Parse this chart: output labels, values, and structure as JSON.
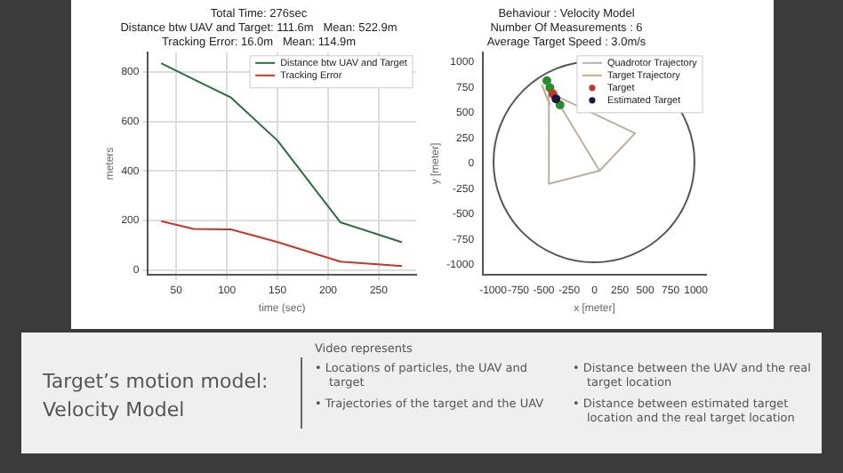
{
  "chart_data": [
    {
      "type": "line",
      "title": "Total Time: 276sec\nDistance btw UAV and Target: 111.6m   Mean: 522.9m\nTracking Error: 16.0m   Mean: 114.9m",
      "xlabel": "time (sec)",
      "ylabel": "meters",
      "x": [
        35,
        67,
        104,
        150,
        212,
        273
      ],
      "series": [
        {
          "name": "Distance btw UAV and Target",
          "color": "#2e6b3e",
          "values": [
            836,
            771,
            697,
            523,
            193,
            112
          ]
        },
        {
          "name": "Tracking Error",
          "color": "#c0392b",
          "values": [
            197,
            166,
            164,
            113,
            34,
            16
          ]
        }
      ],
      "xlim": [
        22,
        287
      ],
      "xticks": [
        50,
        100,
        150,
        200,
        250
      ],
      "ylim": [
        -20,
        880
      ],
      "yticks": [
        0,
        200,
        400,
        600,
        800
      ],
      "grid": true,
      "legend": "top right"
    },
    {
      "type": "scatter",
      "title": "Behaviour : Velocity Model\nNumber Of Measurements : 6\nAverage Target Speed : 3.0m/s",
      "xlabel": "x [meter]",
      "ylabel": "y [meter]",
      "series": [
        {
          "type": "line",
          "marker": "none",
          "name": "Quadrotor Trajectory",
          "color": "#b8b0a8",
          "x": [
            50,
            -450,
            -450,
            -400,
            400,
            50,
            -380
          ],
          "values": [
            -70,
            -200,
            720,
            680,
            300,
            -70,
            640
          ]
        },
        {
          "type": "line",
          "marker": "none",
          "name": "Target Trajectory",
          "color": "#c8a880",
          "x": [
            -520,
            -440
          ],
          "values": [
            780,
            580
          ]
        },
        {
          "type": "scatter",
          "color": "#2e8b2e",
          "x": [
            -470,
            -440,
            -340
          ],
          "values": [
            820,
            750,
            580
          ]
        },
        {
          "name": "Target",
          "type": "scatter",
          "color": "#c0392b",
          "x": [
            -410
          ],
          "values": [
            690
          ]
        },
        {
          "name": "Estimated Target",
          "type": "scatter",
          "color": "#1a1a40",
          "x": [
            -380
          ],
          "values": [
            640
          ]
        }
      ],
      "xlim": [
        -1100,
        1100
      ],
      "xticks": [
        -1000,
        -750,
        -500,
        -250,
        0,
        250,
        500,
        750,
        1000
      ],
      "ylim": [
        -1100,
        1100
      ],
      "yticks": [
        -1000,
        -750,
        -500,
        -250,
        0,
        250,
        500,
        750,
        1000
      ],
      "grid": false,
      "legend": "top right",
      "marker": "circle"
    },
    {
      "type": "other",
      "title": "Target’s motion model:\nVelocity Model",
      "subtitle": "Video represents",
      "annotations": [
        "• Locations of particles, the UAV and target",
        "• Trajectories of the target and the UAV",
        "• Distance between the UAV and the real target location",
        "• Distance between estimated target location and the real target location"
      ]
    }
  ]
}
